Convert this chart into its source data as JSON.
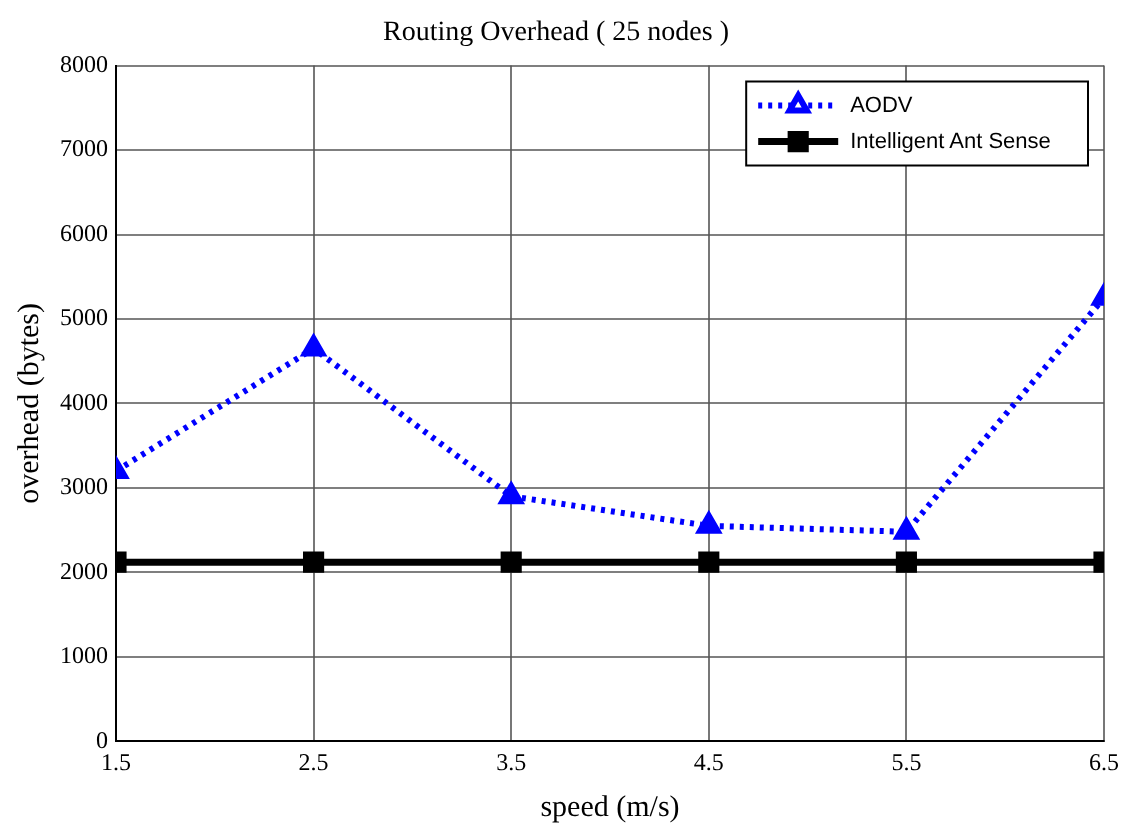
{
  "chart_data": {
    "type": "line",
    "title": "Routing Overhead ( 25 nodes )",
    "xlabel": "speed (m/s)",
    "ylabel": "overhead (bytes)",
    "x": [
      1.5,
      2.5,
      3.5,
      4.5,
      5.5,
      6.5
    ],
    "series": [
      {
        "name": "AODV",
        "color": "#0000ff",
        "values": [
          3200,
          4650,
          2900,
          2550,
          2480,
          5250
        ],
        "marker": "triangle",
        "line_style": "dotted"
      },
      {
        "name": "Intelligent Ant Sense",
        "color": "#000000",
        "values": [
          2120,
          2120,
          2120,
          2120,
          2120,
          2120
        ],
        "marker": "square",
        "line_style": "solid"
      }
    ],
    "xlim": [
      1.5,
      6.5
    ],
    "xticks": [
      1.5,
      2.5,
      3.5,
      4.5,
      5.5,
      6.5
    ],
    "ylim": [
      0,
      8000
    ],
    "yticks": [
      0,
      1000,
      2000,
      3000,
      4000,
      5000,
      6000,
      7000,
      8000
    ],
    "grid": true,
    "legend": "top right"
  }
}
